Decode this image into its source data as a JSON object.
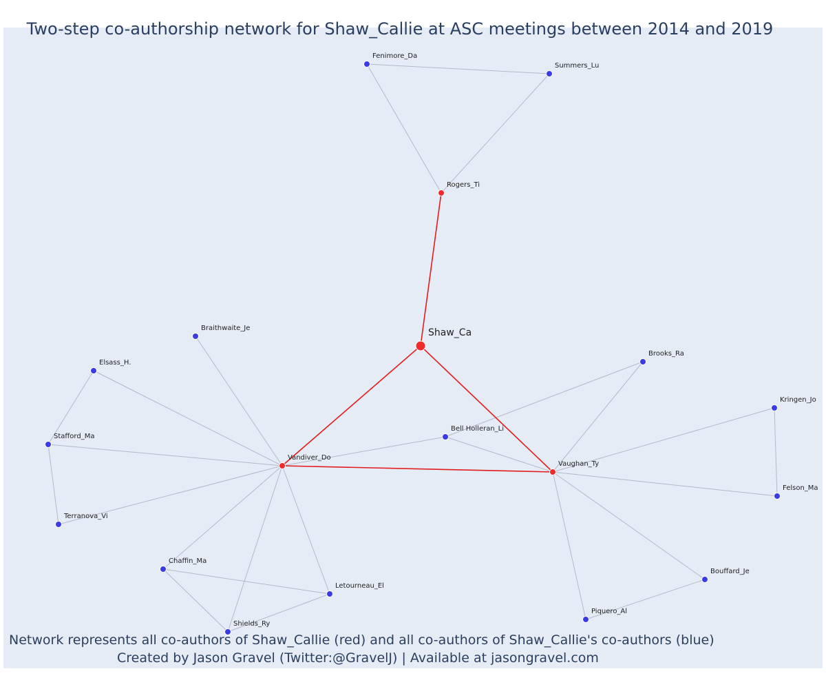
{
  "title": "Two-step co-authorship network for Shaw_Callie at ASC meetings between 2014 and 2019",
  "caption": {
    "line1": "Network represents all co-authors of Shaw_Callie (red) and all co-authors of Shaw_Callie's co-authors (blue)",
    "line2": "Created by Jason Gravel (Twitter:@GravelJ) | Available at jasongravel.com"
  },
  "colors": {
    "background": "#e5ecf6",
    "focal": "#ef2b2b",
    "coauthor": "#ef2b2b",
    "second_degree": "#3b3be6",
    "edge_primary": "#e21b1b",
    "edge_secondary": "#b4b8c8",
    "title": "#2a3f5f"
  },
  "nodes": [
    {
      "id": "Shaw_Ca",
      "group": "focal"
    },
    {
      "id": "Rogers_Ti",
      "group": "coauthor"
    },
    {
      "id": "Vandiver_Do",
      "group": "coauthor"
    },
    {
      "id": "Vaughan_Ty",
      "group": "coauthor"
    },
    {
      "id": "Fenimore_Da",
      "group": "second"
    },
    {
      "id": "Summers_Lu",
      "group": "second"
    },
    {
      "id": "Braithwaite_Je",
      "group": "second"
    },
    {
      "id": "Elsass_H.",
      "group": "second"
    },
    {
      "id": "Stafford_Ma",
      "group": "second"
    },
    {
      "id": "Terranova_Vi",
      "group": "second"
    },
    {
      "id": "Chaffin_Ma",
      "group": "second"
    },
    {
      "id": "Shields_Ry",
      "group": "second"
    },
    {
      "id": "Letourneau_El",
      "group": "second"
    },
    {
      "id": "Bell Holleran_Li",
      "group": "second"
    },
    {
      "id": "Brooks_Ra",
      "group": "second"
    },
    {
      "id": "Kringen_Jo",
      "group": "second"
    },
    {
      "id": "Felson_Ma",
      "group": "second"
    },
    {
      "id": "Bouffard_Je",
      "group": "second"
    },
    {
      "id": "Piquero_Al",
      "group": "second"
    }
  ],
  "edges": [
    {
      "source": "Shaw_Ca",
      "target": "Rogers_Ti",
      "type": "primary"
    },
    {
      "source": "Shaw_Ca",
      "target": "Vandiver_Do",
      "type": "primary"
    },
    {
      "source": "Shaw_Ca",
      "target": "Vaughan_Ty",
      "type": "primary"
    },
    {
      "source": "Vandiver_Do",
      "target": "Vaughan_Ty",
      "type": "primary"
    },
    {
      "source": "Rogers_Ti",
      "target": "Fenimore_Da",
      "type": "secondary"
    },
    {
      "source": "Rogers_Ti",
      "target": "Summers_Lu",
      "type": "secondary"
    },
    {
      "source": "Fenimore_Da",
      "target": "Summers_Lu",
      "type": "secondary"
    },
    {
      "source": "Vandiver_Do",
      "target": "Braithwaite_Je",
      "type": "secondary"
    },
    {
      "source": "Vandiver_Do",
      "target": "Elsass_H.",
      "type": "secondary"
    },
    {
      "source": "Vandiver_Do",
      "target": "Stafford_Ma",
      "type": "secondary"
    },
    {
      "source": "Vandiver_Do",
      "target": "Terranova_Vi",
      "type": "secondary"
    },
    {
      "source": "Vandiver_Do",
      "target": "Chaffin_Ma",
      "type": "secondary"
    },
    {
      "source": "Vandiver_Do",
      "target": "Shields_Ry",
      "type": "secondary"
    },
    {
      "source": "Vandiver_Do",
      "target": "Letourneau_El",
      "type": "secondary"
    },
    {
      "source": "Vandiver_Do",
      "target": "Bell Holleran_Li",
      "type": "secondary"
    },
    {
      "source": "Elsass_H.",
      "target": "Stafford_Ma",
      "type": "secondary"
    },
    {
      "source": "Stafford_Ma",
      "target": "Terranova_Vi",
      "type": "secondary"
    },
    {
      "source": "Chaffin_Ma",
      "target": "Shields_Ry",
      "type": "secondary"
    },
    {
      "source": "Chaffin_Ma",
      "target": "Letourneau_El",
      "type": "secondary"
    },
    {
      "source": "Shields_Ry",
      "target": "Letourneau_El",
      "type": "secondary"
    },
    {
      "source": "Vaughan_Ty",
      "target": "Bell Holleran_Li",
      "type": "secondary"
    },
    {
      "source": "Vaughan_Ty",
      "target": "Brooks_Ra",
      "type": "secondary"
    },
    {
      "source": "Bell Holleran_Li",
      "target": "Brooks_Ra",
      "type": "secondary"
    },
    {
      "source": "Vaughan_Ty",
      "target": "Kringen_Jo",
      "type": "secondary"
    },
    {
      "source": "Vaughan_Ty",
      "target": "Felson_Ma",
      "type": "secondary"
    },
    {
      "source": "Kringen_Jo",
      "target": "Felson_Ma",
      "type": "secondary"
    },
    {
      "source": "Vaughan_Ty",
      "target": "Bouffard_Je",
      "type": "secondary"
    },
    {
      "source": "Vaughan_Ty",
      "target": "Piquero_Al",
      "type": "secondary"
    },
    {
      "source": "Bouffard_Je",
      "target": "Piquero_Al",
      "type": "secondary"
    }
  ]
}
